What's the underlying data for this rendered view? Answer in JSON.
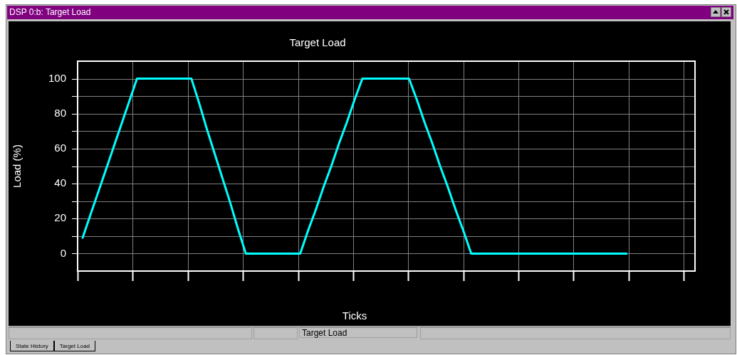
{
  "chart_data": {
    "type": "line",
    "title": "Target Load",
    "xlabel": "Ticks",
    "ylabel": "Load (%)",
    "annotations": [
      "DSP 0:b: Target Load",
      "Target Load",
      "State History",
      "Target Load"
    ],
    "categories": [
      null,
      null,
      null,
      null,
      null,
      null,
      null,
      null,
      null,
      null,
      null,
      null,
      null,
      null,
      null,
      null,
      null,
      null,
      null,
      null,
      null,
      null,
      null,
      null,
      null,
      null,
      null,
      null,
      null,
      null,
      null,
      null,
      null,
      null,
      null,
      null,
      null,
      null,
      null,
      null,
      null,
      null,
      null,
      null,
      null,
      null,
      null,
      null,
      null,
      null,
      null,
      null,
      null,
      null,
      null,
      null,
      null,
      null,
      null,
      null,
      null,
      null,
      null,
      null,
      null,
      null,
      null,
      null,
      null,
      null,
      null
    ],
    "series": [
      {
        "color": "#00ffff",
        "values": [
          9,
          22,
          35,
          48,
          61,
          74,
          87,
          100,
          100,
          100,
          100,
          100,
          100,
          100,
          100,
          86,
          71,
          57,
          43,
          29,
          14,
          0,
          0,
          0,
          0,
          0,
          0,
          0,
          0,
          13,
          25,
          38,
          50,
          63,
          75,
          88,
          100,
          100,
          100,
          100,
          100,
          100,
          100,
          88,
          75,
          63,
          50,
          38,
          25,
          13,
          0,
          0,
          0,
          0,
          0,
          0,
          0,
          0,
          0,
          0,
          0,
          0,
          0,
          0,
          0,
          0,
          0,
          0,
          0,
          0,
          0
        ]
      }
    ],
    "ylim": [
      -10,
      110
    ],
    "yticks": [
      0,
      {
        "value": 10,
        "label": null
      },
      20,
      {
        "value": 30,
        "label": null
      },
      40,
      {
        "value": 50,
        "label": null
      },
      60,
      {
        "value": 70,
        "label": null
      },
      80,
      {
        "value": 90,
        "label": null
      },
      100
    ],
    "grid": true,
    "line_style": "solid"
  }
}
